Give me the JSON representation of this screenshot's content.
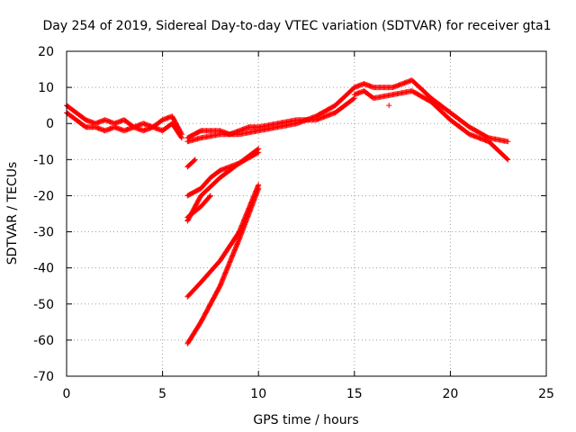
{
  "chart_data": {
    "type": "scatter",
    "title": "Day 254 of 2019, Sidereal Day-to-day VTEC variation (SDTVAR) for receiver gta1",
    "xlabel": "GPS time / hours",
    "ylabel": "SDTVAR / TECUs",
    "xlim": [
      0,
      25
    ],
    "ylim": [
      -70,
      20
    ],
    "xticks": [
      "0",
      "5",
      "10",
      "15",
      "20",
      "25"
    ],
    "yticks": [
      "20",
      "10",
      "0",
      "-10",
      "-20",
      "-30",
      "-40",
      "-50",
      "-60",
      "-70"
    ],
    "grid": true,
    "marker": "+",
    "color": "#ff0000",
    "series": [
      {
        "name": "trace-1",
        "x": [
          0.0,
          0.5,
          1.0,
          1.5,
          2.0,
          2.5,
          3.0,
          3.5,
          4.0,
          4.5,
          5.0,
          5.5,
          6.0
        ],
        "y": [
          5,
          3,
          1,
          0,
          1,
          0,
          1,
          -1,
          0,
          -1,
          1,
          2,
          -3
        ]
      },
      {
        "name": "trace-2",
        "x": [
          0.0,
          0.5,
          1.0,
          1.5,
          2.0,
          2.5,
          3.0,
          3.5,
          4.0,
          4.5,
          5.0,
          5.5,
          6.0
        ],
        "y": [
          3,
          1,
          -1,
          -1,
          -2,
          -1,
          -2,
          -1,
          -2,
          -1,
          -2,
          0,
          -4
        ]
      },
      {
        "name": "trace-3",
        "x": [
          6.3,
          7,
          8,
          8.5,
          9,
          9.5,
          10,
          11,
          12,
          13,
          14,
          15
        ],
        "y": [
          -4,
          -2,
          -2,
          -3,
          -2,
          -1,
          -1,
          0,
          1,
          1,
          3,
          7
        ]
      },
      {
        "name": "trace-4",
        "x": [
          6.3,
          7,
          8,
          9,
          10,
          11,
          12,
          13,
          14,
          15,
          15.5,
          16,
          17,
          18,
          19,
          20,
          21,
          22,
          23
        ],
        "y": [
          -5,
          -4,
          -3,
          -3,
          -2,
          -1,
          0,
          2,
          5,
          10,
          11,
          10,
          10,
          12,
          7,
          3,
          -1,
          -4,
          -5
        ]
      },
      {
        "name": "trace-5",
        "x": [
          15,
          15.5,
          16,
          17,
          18,
          19,
          20,
          21,
          22,
          23
        ],
        "y": [
          8,
          9,
          7,
          8,
          9,
          6,
          1,
          -3,
          -5,
          -10
        ]
      },
      {
        "name": "trace-6",
        "x": [
          6.3,
          6.7
        ],
        "y": [
          -12,
          -10
        ]
      },
      {
        "name": "trace-7",
        "x": [
          6.3,
          7.0,
          7.5,
          8.0,
          9.0,
          10.0
        ],
        "y": [
          -20,
          -18,
          -15,
          -13,
          -11,
          -7
        ]
      },
      {
        "name": "trace-8",
        "x": [
          6.3,
          7.0,
          8.0,
          9.0,
          10.0
        ],
        "y": [
          -27,
          -20,
          -15,
          -11,
          -8
        ]
      },
      {
        "name": "trace-9",
        "x": [
          6.3,
          7.0,
          7.5
        ],
        "y": [
          -26,
          -23,
          -20
        ]
      },
      {
        "name": "trace-10",
        "x": [
          6.3,
          7.0,
          8.0,
          9.0,
          10.0
        ],
        "y": [
          -48,
          -44,
          -38,
          -30,
          -17
        ]
      },
      {
        "name": "trace-11",
        "x": [
          6.3,
          7.0,
          8.0,
          9.0,
          10.0
        ],
        "y": [
          -61,
          -55,
          -45,
          -32,
          -18
        ]
      },
      {
        "name": "outliers",
        "x": [
          16.8
        ],
        "y": [
          5
        ]
      }
    ]
  }
}
